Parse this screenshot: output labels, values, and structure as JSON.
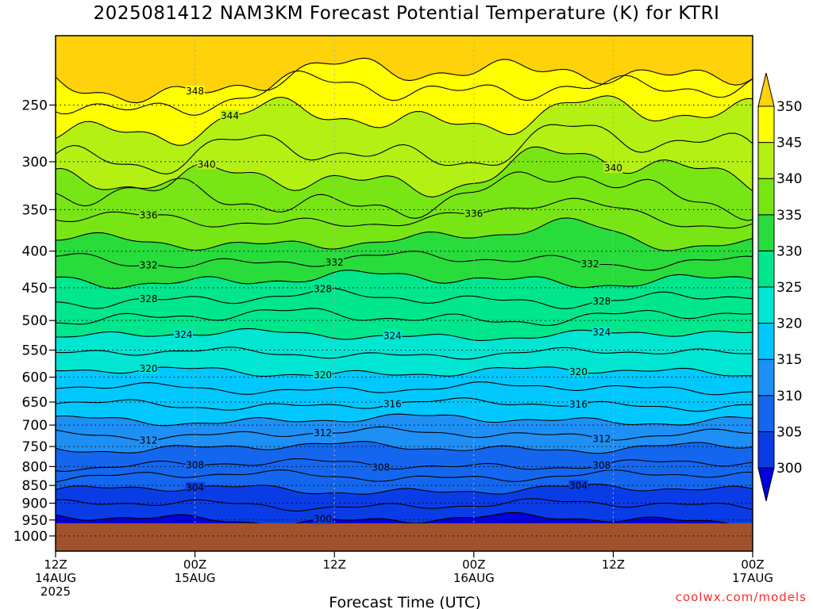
{
  "chart_data": {
    "type": "contour",
    "title": "2025081412 NAM3KM Forecast Potential Temperature (K) for KTRI",
    "xlabel": "Forecast Time (UTC)",
    "ylabel": "",
    "credit": "coolwx.com/models",
    "y_scale": "log-pressure",
    "ylim": [
      1050,
      200
    ],
    "y_ticks": [
      250,
      300,
      350,
      400,
      450,
      500,
      550,
      600,
      650,
      700,
      750,
      800,
      850,
      900,
      950,
      1000
    ],
    "x_hours": [
      0,
      48
    ],
    "x_ticks": [
      {
        "hour": 0,
        "lines": [
          "12Z",
          "14AUG",
          "2025"
        ]
      },
      {
        "hour": 12,
        "lines": [
          "00Z",
          "15AUG"
        ]
      },
      {
        "hour": 24,
        "lines": [
          "12Z"
        ]
      },
      {
        "hour": 36,
        "lines": [
          "00Z",
          "16AUG"
        ]
      },
      {
        "hour": 48,
        "lines": [
          "12Z"
        ]
      },
      {
        "hour": 60,
        "lines": [
          "00Z",
          "17AUG"
        ]
      }
    ],
    "x_range_hours": [
      0,
      60
    ],
    "surface_pressure": 960,
    "colorbar": {
      "ticks": [
        300,
        305,
        310,
        315,
        320,
        325,
        330,
        335,
        340,
        345,
        350
      ],
      "colors": [
        "#0000dd",
        "#0a3ce6",
        "#1466ee",
        "#1e90f5",
        "#00c8ff",
        "#00e6d2",
        "#00e68c",
        "#28dc3c",
        "#78e614",
        "#b4f014",
        "#ffff00",
        "#ffd20a"
      ]
    },
    "contour_levels": [
      {
        "theta": 348,
        "p": 228
      },
      {
        "theta": 346,
        "p": 240
      },
      {
        "theta": 344,
        "p": 262
      },
      {
        "theta": 342,
        "p": 290
      },
      {
        "theta": 340,
        "p": 315
      },
      {
        "theta": 338,
        "p": 338
      },
      {
        "theta": 336,
        "p": 362
      },
      {
        "theta": 334,
        "p": 388
      },
      {
        "theta": 332,
        "p": 412
      },
      {
        "theta": 330,
        "p": 438
      },
      {
        "theta": 328,
        "p": 466
      },
      {
        "theta": 326,
        "p": 494
      },
      {
        "theta": 324,
        "p": 524
      },
      {
        "theta": 322,
        "p": 556
      },
      {
        "theta": 320,
        "p": 590
      },
      {
        "theta": 318,
        "p": 622
      },
      {
        "theta": 316,
        "p": 655
      },
      {
        "theta": 314,
        "p": 688
      },
      {
        "theta": 312,
        "p": 720
      },
      {
        "theta": 310,
        "p": 752
      },
      {
        "theta": 308,
        "p": 795
      },
      {
        "theta": 306,
        "p": 825
      },
      {
        "theta": 304,
        "p": 862
      },
      {
        "theta": 302,
        "p": 905
      },
      {
        "theta": 300,
        "p": 948
      }
    ],
    "contour_labels": [
      {
        "text": "348",
        "hour": 12,
        "theta": 348
      },
      {
        "text": "344",
        "hour": 15,
        "theta": 344
      },
      {
        "text": "340",
        "hour": 13,
        "theta": 340
      },
      {
        "text": "340",
        "hour": 48,
        "theta": 340
      },
      {
        "text": "336",
        "hour": 8,
        "theta": 336
      },
      {
        "text": "336",
        "hour": 36,
        "theta": 336
      },
      {
        "text": "332",
        "hour": 8,
        "theta": 332
      },
      {
        "text": "332",
        "hour": 24,
        "theta": 332
      },
      {
        "text": "332",
        "hour": 46,
        "theta": 332
      },
      {
        "text": "328",
        "hour": 8,
        "theta": 328
      },
      {
        "text": "328",
        "hour": 23,
        "theta": 328
      },
      {
        "text": "328",
        "hour": 47,
        "theta": 328
      },
      {
        "text": "324",
        "hour": 11,
        "theta": 324
      },
      {
        "text": "324",
        "hour": 29,
        "theta": 324
      },
      {
        "text": "324",
        "hour": 47,
        "theta": 324
      },
      {
        "text": "320",
        "hour": 8,
        "theta": 320
      },
      {
        "text": "320",
        "hour": 23,
        "theta": 320
      },
      {
        "text": "320",
        "hour": 45,
        "theta": 320
      },
      {
        "text": "316",
        "hour": 29,
        "theta": 316
      },
      {
        "text": "316",
        "hour": 45,
        "theta": 316
      },
      {
        "text": "312",
        "hour": 8,
        "theta": 312
      },
      {
        "text": "312",
        "hour": 23,
        "theta": 312
      },
      {
        "text": "312",
        "hour": 47,
        "theta": 312
      },
      {
        "text": "308",
        "hour": 12,
        "theta": 308
      },
      {
        "text": "308",
        "hour": 28,
        "theta": 308
      },
      {
        "text": "308",
        "hour": 47,
        "theta": 308
      },
      {
        "text": "304",
        "hour": 12,
        "theta": 304
      },
      {
        "text": "304",
        "hour": 45,
        "theta": 304
      },
      {
        "text": "300",
        "hour": 23,
        "theta": 300
      }
    ]
  }
}
